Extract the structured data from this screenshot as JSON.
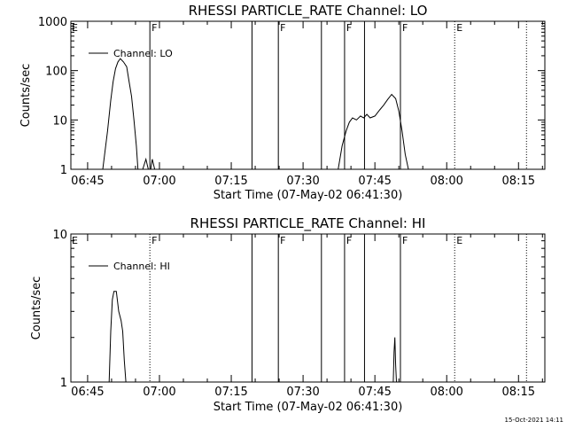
{
  "footer": {
    "timestamp": "15-Oct-2021 14:11"
  },
  "chart_data": [
    {
      "type": "line",
      "title": "RHESSI PARTICLE_RATE Channel: LO",
      "xlabel": "Start Time (07-May-02 06:41:30)",
      "ylabel": "Counts/sec",
      "x_tick_labels": [
        "06:45",
        "07:00",
        "07:15",
        "07:30",
        "07:45",
        "08:00",
        "08:15"
      ],
      "xlim": [
        "06:41:30",
        "08:20:30"
      ],
      "y_scale": "log",
      "ylim": [
        1,
        1000
      ],
      "y_tick_labels": [
        "1",
        "10",
        "100",
        "1000"
      ],
      "legend": {
        "label": "Channel: LO",
        "position": "top-left"
      },
      "series": [
        {
          "name": "Channel: LO",
          "x": [
            "06:48:10",
            "06:49:10",
            "06:49:50",
            "06:50:20",
            "06:50:50",
            "06:51:20",
            "06:51:50",
            "06:52:30",
            "06:53:10",
            "06:53:40",
            "06:54:10",
            "06:54:40",
            "06:55:10",
            "06:55:30",
            "06:56:00",
            "06:56:30",
            "06:57:10",
            "06:57:40",
            "06:58:10",
            "06:58:30",
            "06:59:00",
            "06:59:20"
          ],
          "y": [
            1,
            6,
            25,
            60,
            110,
            150,
            175,
            150,
            120,
            60,
            30,
            10,
            3,
            1,
            1,
            1,
            1.6,
            1,
            1,
            1.6,
            1,
            1
          ]
        },
        {
          "name": "Channel: LO",
          "x": [
            "07:37:20",
            "07:38:10",
            "07:39:00",
            "07:39:40",
            "07:40:20",
            "07:41:10",
            "07:42:00",
            "07:42:40",
            "07:43:20",
            "07:44:00",
            "07:45:00",
            "07:46:00",
            "07:46:50",
            "07:47:40",
            "07:48:30",
            "07:49:20",
            "07:50:00",
            "07:50:40",
            "07:51:20",
            "07:52:00",
            "07:52:40"
          ],
          "y": [
            1,
            3,
            6,
            9,
            11,
            10,
            12,
            11,
            13,
            11,
            12,
            16,
            20,
            26,
            33,
            27,
            15,
            6,
            2,
            1,
            1
          ]
        }
      ],
      "vlines": [
        {
          "x": "06:58:00",
          "style": "solid",
          "label": "F"
        },
        {
          "x": "07:19:20",
          "style": "solid",
          "label": ""
        },
        {
          "x": "07:24:50",
          "style": "solid",
          "label": "F"
        },
        {
          "x": "07:33:50",
          "style": "solid",
          "label": ""
        },
        {
          "x": "07:38:40",
          "style": "solid",
          "label": "F"
        },
        {
          "x": "07:42:50",
          "style": "solid",
          "label": ""
        },
        {
          "x": "07:50:20",
          "style": "solid",
          "label": "F"
        },
        {
          "x": "08:01:40",
          "style": "dotted",
          "label": "E"
        },
        {
          "x": "08:16:40",
          "style": "dotted",
          "label": ""
        }
      ],
      "edge_labels": [
        {
          "label": "E",
          "position": "left-top"
        }
      ]
    },
    {
      "type": "line",
      "title": "RHESSI PARTICLE_RATE Channel: HI",
      "xlabel": "Start Time (07-May-02 06:41:30)",
      "ylabel": "Counts/sec",
      "x_tick_labels": [
        "06:45",
        "07:00",
        "07:15",
        "07:30",
        "07:45",
        "08:00",
        "08:15"
      ],
      "xlim": [
        "06:41:30",
        "08:20:30"
      ],
      "y_scale": "log",
      "ylim": [
        1,
        10
      ],
      "y_tick_labels": [
        "1",
        "10"
      ],
      "legend": {
        "label": "Channel: HI",
        "position": "top-left"
      },
      "series": [
        {
          "name": "Channel: HI",
          "x": [
            "06:49:30",
            "06:49:50",
            "06:50:10",
            "06:50:30",
            "06:51:00",
            "06:51:30",
            "06:52:00",
            "06:52:20",
            "06:52:40",
            "06:53:00"
          ],
          "y": [
            1,
            2.2,
            3.6,
            4.1,
            4.1,
            3.0,
            2.6,
            2.2,
            1.4,
            1
          ]
        },
        {
          "name": "Channel: HI",
          "x": [
            "07:48:50",
            "07:49:00",
            "07:49:10",
            "07:49:20",
            "07:49:30"
          ],
          "y": [
            1,
            1.6,
            2.0,
            1.3,
            1
          ]
        }
      ],
      "vlines": [
        {
          "x": "06:58:00",
          "style": "dotted",
          "label": "F"
        },
        {
          "x": "07:19:20",
          "style": "solid",
          "label": ""
        },
        {
          "x": "07:24:50",
          "style": "solid",
          "label": "F"
        },
        {
          "x": "07:33:50",
          "style": "solid",
          "label": ""
        },
        {
          "x": "07:38:40",
          "style": "solid",
          "label": "F"
        },
        {
          "x": "07:42:50",
          "style": "solid",
          "label": ""
        },
        {
          "x": "07:50:20",
          "style": "solid",
          "label": "F"
        },
        {
          "x": "08:01:40",
          "style": "dotted",
          "label": "E"
        },
        {
          "x": "08:16:40",
          "style": "dotted",
          "label": ""
        }
      ],
      "edge_labels": [
        {
          "label": "E",
          "position": "left-top"
        }
      ]
    }
  ]
}
